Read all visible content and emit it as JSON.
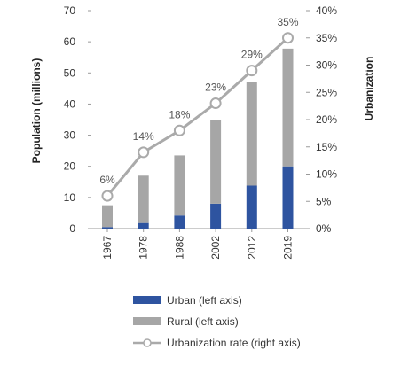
{
  "chart_data": {
    "type": "bar",
    "categories": [
      "1967",
      "1978",
      "1988",
      "2002",
      "2012",
      "2019"
    ],
    "series": [
      {
        "name": "Urban (left axis)",
        "type": "bar",
        "stacked": true,
        "axis": "left",
        "values": [
          0.5,
          1.8,
          4.2,
          8.0,
          13.8,
          20.0
        ],
        "color": "#2e54a0"
      },
      {
        "name": "Rural (left axis)",
        "type": "bar",
        "stacked": true,
        "axis": "left",
        "values": [
          7.0,
          15.2,
          19.3,
          27.0,
          33.2,
          37.8
        ],
        "color": "#a6a6a6"
      },
      {
        "name": "Urbanization rate (right axis)",
        "type": "line",
        "axis": "right",
        "values": [
          6,
          14,
          18,
          23,
          29,
          35
        ],
        "color": "#aaaaaa"
      }
    ],
    "point_labels": [
      "6%",
      "14%",
      "18%",
      "23%",
      "29%",
      "35%"
    ],
    "ylabel": "Population (millions)",
    "ylabel_right": "Urbanization",
    "ylim": [
      0,
      70
    ],
    "yticks": [
      "0",
      "10",
      "20",
      "30",
      "40",
      "50",
      "60",
      "70"
    ],
    "ylim_right": [
      0,
      40
    ],
    "yticks_right": [
      "0%",
      "5%",
      "10%",
      "15%",
      "20%",
      "25%",
      "30%",
      "35%",
      "40%"
    ],
    "grid": false,
    "legend_position": "bottom"
  }
}
